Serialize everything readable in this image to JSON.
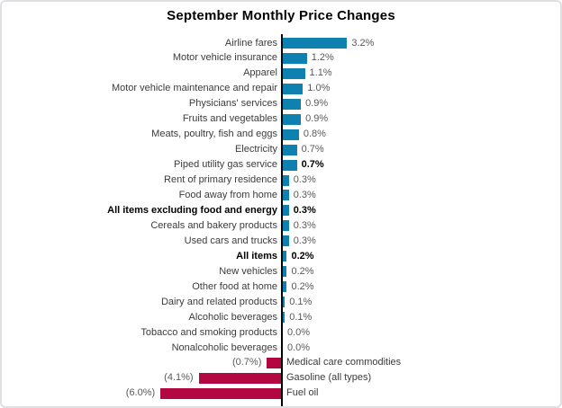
{
  "title": "September Monthly Price Changes",
  "colors": {
    "positive_bar": "#0e81b1",
    "negative_bar": "#b30742",
    "axis": "#000000",
    "frame_border": "#e0e0e4",
    "category_text": "#3b3b3b",
    "value_text": "#595959",
    "bold_text": "#000000",
    "background": "#ffffff"
  },
  "chart_data": {
    "type": "bar",
    "orientation": "horizontal",
    "title": "September Monthly Price Changes",
    "unit": "%",
    "value_range": [
      -6.0,
      3.2
    ],
    "zero_baseline_shown": true,
    "gridlines": false,
    "legend": false,
    "points": [
      {
        "label": "Airline fares",
        "value": 3.2,
        "display": "3.2%",
        "bold_label": false,
        "bold_value": false
      },
      {
        "label": "Motor vehicle insurance",
        "value": 1.2,
        "display": "1.2%",
        "bold_label": false,
        "bold_value": false
      },
      {
        "label": "Apparel",
        "value": 1.1,
        "display": "1.1%",
        "bold_label": false,
        "bold_value": false
      },
      {
        "label": "Motor vehicle maintenance and repair",
        "value": 1.0,
        "display": "1.0%",
        "bold_label": false,
        "bold_value": false
      },
      {
        "label": "Physicians' services",
        "value": 0.9,
        "display": "0.9%",
        "bold_label": false,
        "bold_value": false
      },
      {
        "label": "Fruits and vegetables",
        "value": 0.9,
        "display": "0.9%",
        "bold_label": false,
        "bold_value": false
      },
      {
        "label": "Meats, poultry, fish and eggs",
        "value": 0.8,
        "display": "0.8%",
        "bold_label": false,
        "bold_value": false
      },
      {
        "label": "Electricity",
        "value": 0.7,
        "display": "0.7%",
        "bold_label": false,
        "bold_value": false
      },
      {
        "label": "Piped utility gas service",
        "value": 0.7,
        "display": "0.7%",
        "bold_label": false,
        "bold_value": true
      },
      {
        "label": "Rent of primary residence",
        "value": 0.3,
        "display": "0.3%",
        "bold_label": false,
        "bold_value": false
      },
      {
        "label": "Food away from home",
        "value": 0.3,
        "display": "0.3%",
        "bold_label": false,
        "bold_value": false
      },
      {
        "label": "All items excluding food and energy",
        "value": 0.3,
        "display": "0.3%",
        "bold_label": true,
        "bold_value": true
      },
      {
        "label": "Cereals and bakery products",
        "value": 0.3,
        "display": "0.3%",
        "bold_label": false,
        "bold_value": false
      },
      {
        "label": "Used cars and trucks",
        "value": 0.3,
        "display": "0.3%",
        "bold_label": false,
        "bold_value": false
      },
      {
        "label": "All items",
        "value": 0.2,
        "display": "0.2%",
        "bold_label": true,
        "bold_value": true
      },
      {
        "label": "New vehicles",
        "value": 0.2,
        "display": "0.2%",
        "bold_label": false,
        "bold_value": false
      },
      {
        "label": "Other food at home",
        "value": 0.2,
        "display": "0.2%",
        "bold_label": false,
        "bold_value": false
      },
      {
        "label": "Dairy and related products",
        "value": 0.1,
        "display": "0.1%",
        "bold_label": false,
        "bold_value": false
      },
      {
        "label": "Alcoholic beverages",
        "value": 0.1,
        "display": "0.1%",
        "bold_label": false,
        "bold_value": false
      },
      {
        "label": "Tobacco and smoking products",
        "value": 0.0,
        "display": "0.0%",
        "bold_label": false,
        "bold_value": false
      },
      {
        "label": "Nonalcoholic beverages",
        "value": 0.0,
        "display": "0.0%",
        "bold_label": false,
        "bold_value": false
      },
      {
        "label": "Medical care commodities",
        "value": -0.7,
        "display": "(0.7%)",
        "bold_label": false,
        "bold_value": false
      },
      {
        "label": "Gasoline (all types)",
        "value": -4.1,
        "display": "(4.1%)",
        "bold_label": false,
        "bold_value": false
      },
      {
        "label": "Fuel oil",
        "value": -6.0,
        "display": "(6.0%)",
        "bold_label": false,
        "bold_value": false
      }
    ]
  }
}
